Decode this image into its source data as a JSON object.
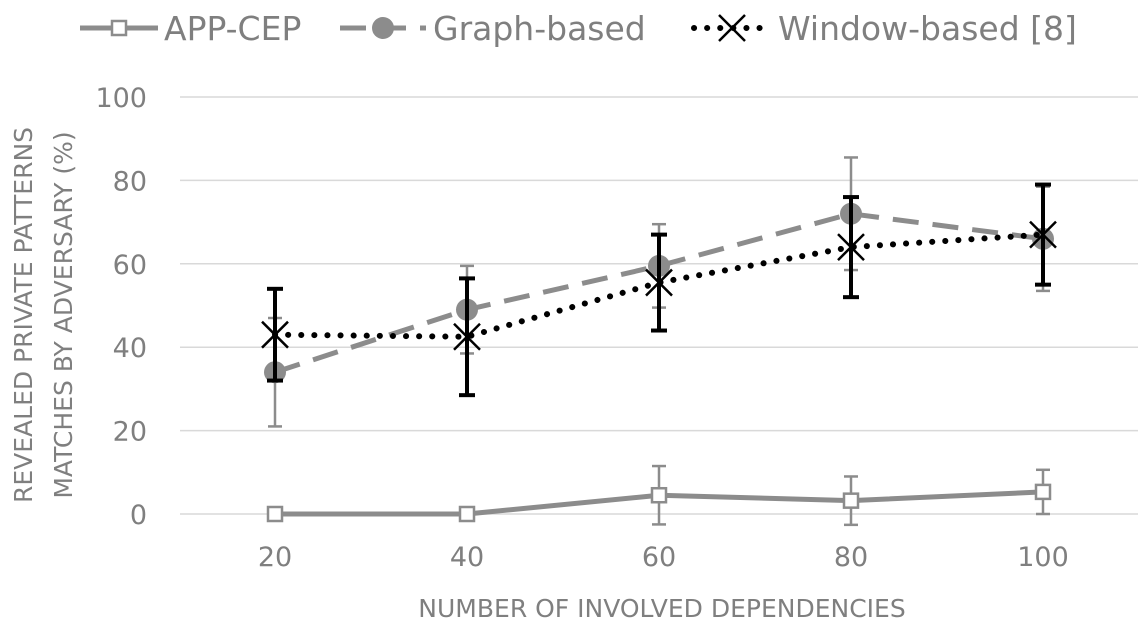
{
  "chart_data": {
    "type": "line",
    "title": "",
    "xlabel": "NUMBER OF INVOLVED DEPENDENCIES",
    "ylabel_lines": [
      "REVEALED PRIVATE PATTERNS",
      "MATCHES BY ADVERSARY (%)"
    ],
    "categories": [
      "20",
      "40",
      "60",
      "80",
      "100"
    ],
    "ylim": [
      0,
      100
    ],
    "yticks": [
      "0",
      "20",
      "40",
      "60",
      "80",
      "100"
    ],
    "grid": true,
    "legend_position": "top",
    "series": [
      {
        "name": "APP-CEP",
        "values": [
          0,
          0,
          4.5,
          3.2,
          5.3
        ],
        "errors": [
          0,
          0,
          7,
          5.8,
          5.3
        ],
        "color": "#8c8c8c",
        "line": "solid",
        "marker": "square-open"
      },
      {
        "name": "Graph-based",
        "values": [
          34,
          49,
          59.5,
          72,
          66
        ],
        "errors": [
          13,
          10.5,
          10,
          13.5,
          12.5
        ],
        "color": "#8c8c8c",
        "line": "dashed",
        "marker": "circle"
      },
      {
        "name": "Window-based [8]",
        "values": [
          43,
          42.5,
          55.5,
          64,
          67
        ],
        "errors": [
          11,
          14,
          11.5,
          12,
          12
        ],
        "color": "#000000",
        "line": "dotted",
        "marker": "x"
      }
    ]
  }
}
